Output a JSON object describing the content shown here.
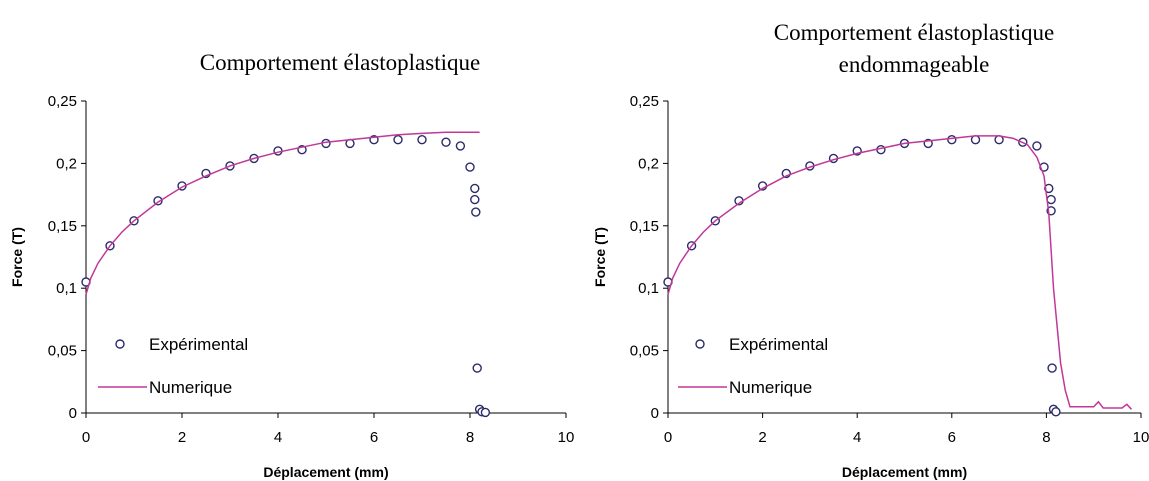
{
  "chart_data": [
    {
      "type": "scatter",
      "title": [
        "Comportement élastoplastique"
      ],
      "xlabel": "Déplacement (mm)",
      "ylabel": "Force (T)",
      "xlim": [
        0,
        10
      ],
      "ylim": [
        0,
        0.25
      ],
      "xticks": [
        "0",
        "2",
        "4",
        "6",
        "8",
        "10"
      ],
      "yticks": [
        "0",
        "0,05",
        "0,1",
        "0,15",
        "0,2",
        "0,25"
      ],
      "legend_position": "bottom-left",
      "series": [
        {
          "name": "Expérimental",
          "kind": "markers",
          "color": "#2b2b6b",
          "x": [
            0,
            0.5,
            1,
            1.5,
            2,
            2.5,
            3,
            3.5,
            4,
            4.5,
            5,
            5.5,
            6,
            6.5,
            7,
            7.5,
            7.8,
            8.0,
            8.1,
            8.1,
            8.12,
            8.15,
            8.2,
            8.25,
            8.32
          ],
          "y": [
            0.105,
            0.134,
            0.154,
            0.17,
            0.182,
            0.192,
            0.198,
            0.204,
            0.21,
            0.211,
            0.216,
            0.216,
            0.219,
            0.219,
            0.219,
            0.217,
            0.214,
            0.197,
            0.18,
            0.171,
            0.161,
            0.036,
            0.003,
            0.001,
            0.0005
          ]
        },
        {
          "name": "Numerique",
          "kind": "line",
          "color": "#c0389a",
          "x": [
            0,
            0.1,
            0.25,
            0.5,
            0.75,
            1,
            1.5,
            2,
            2.5,
            3,
            3.5,
            4,
            4.5,
            5,
            5.5,
            6,
            6.5,
            7,
            7.5,
            8,
            8.2
          ],
          "y": [
            0.095,
            0.108,
            0.12,
            0.134,
            0.145,
            0.154,
            0.169,
            0.181,
            0.19,
            0.198,
            0.204,
            0.209,
            0.213,
            0.217,
            0.219,
            0.221,
            0.223,
            0.224,
            0.225,
            0.225,
            0.225
          ]
        }
      ]
    },
    {
      "type": "scatter",
      "title": [
        "Comportement élastoplastique",
        "endommageable"
      ],
      "xlabel": "Déplacement (mm)",
      "ylabel": "Force (T)",
      "xlim": [
        0,
        10
      ],
      "ylim": [
        0,
        0.25
      ],
      "xticks": [
        "0",
        "2",
        "4",
        "6",
        "8",
        "10"
      ],
      "yticks": [
        "0",
        "0,05",
        "0,1",
        "0,15",
        "0,2",
        "0,25"
      ],
      "legend_position": "bottom-left",
      "series": [
        {
          "name": "Expérimental",
          "kind": "markers",
          "color": "#2b2b6b",
          "x": [
            0,
            0.5,
            1,
            1.5,
            2,
            2.5,
            3,
            3.5,
            4,
            4.5,
            5,
            5.5,
            6,
            6.5,
            7,
            7.5,
            7.8,
            7.95,
            8.05,
            8.1,
            8.1,
            8.12,
            8.15,
            8.2
          ],
          "y": [
            0.105,
            0.134,
            0.154,
            0.17,
            0.182,
            0.192,
            0.198,
            0.204,
            0.21,
            0.211,
            0.216,
            0.216,
            0.219,
            0.219,
            0.219,
            0.217,
            0.214,
            0.197,
            0.18,
            0.171,
            0.162,
            0.036,
            0.003,
            0.001
          ]
        },
        {
          "name": "Numerique",
          "kind": "line",
          "color": "#c0389a",
          "x": [
            0,
            0.1,
            0.25,
            0.5,
            0.75,
            1,
            1.5,
            2,
            2.5,
            3,
            3.5,
            4,
            4.5,
            5,
            5.5,
            6,
            6.5,
            7,
            7.3,
            7.6,
            7.8,
            7.95,
            8.05,
            8.15,
            8.3,
            8.4,
            8.5,
            8.6,
            9.0,
            9.1,
            9.2,
            9.6,
            9.7,
            9.8
          ],
          "y": [
            0.095,
            0.108,
            0.12,
            0.134,
            0.145,
            0.154,
            0.168,
            0.18,
            0.19,
            0.197,
            0.203,
            0.208,
            0.212,
            0.216,
            0.218,
            0.22,
            0.222,
            0.222,
            0.22,
            0.215,
            0.205,
            0.19,
            0.16,
            0.1,
            0.04,
            0.018,
            0.005,
            0.005,
            0.005,
            0.009,
            0.004,
            0.004,
            0.007,
            0.003
          ]
        }
      ]
    }
  ]
}
